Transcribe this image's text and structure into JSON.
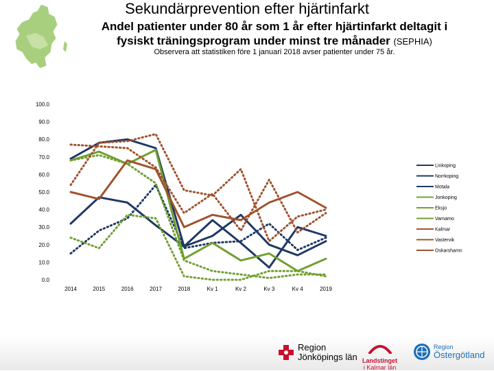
{
  "title": "Sekundärprevention efter hjärtinfarkt",
  "subtitle": "Andel patienter under 80 år som 1 år efter hjärtinfarkt deltagit i fysiskt träningsprogram under minst tre månader",
  "subtitle_tag": "(SEPHIA)",
  "note": "Observera att statistiken före 1 januari  2018 avser patienter under 75 år.",
  "logos": {
    "jonkoping_line1": "Region",
    "jonkoping_line2": "Jönköpings län",
    "kalmar_line1": "Landstinget",
    "kalmar_line2": "i Kalmar län",
    "ostergotland_line1": "Region",
    "ostergotland_line2": "Östergötland"
  },
  "colors": {
    "navy": "#1f3864",
    "green": "#70a030",
    "brown": "#a0522d",
    "background": "#ffffff"
  },
  "chart_data": {
    "type": "line",
    "title": "",
    "xlabel": "",
    "ylabel": "",
    "ylim": [
      0,
      100
    ],
    "yticks": [
      "100.0",
      "90.0",
      "80.0",
      "70.0",
      "60.0",
      "50.0",
      "40.0",
      "30.0",
      "20.0",
      "10.0",
      "0.0"
    ],
    "categories": [
      "2014",
      "2015",
      "2016",
      "2017",
      "2018",
      "Kv 1",
      "Kv 2",
      "Kv 3",
      "Kv 4",
      "2019"
    ],
    "legend_position": "right",
    "series": [
      {
        "name": "Linköping",
        "legend_label": "Linkoping",
        "color": "#1f3864",
        "dash": "solid",
        "values": [
          69,
          78,
          80,
          75,
          19,
          25,
          37,
          20,
          14,
          22
        ]
      },
      {
        "name": "Norrköping",
        "legend_label": "Norrkoping",
        "color": "#1f3864",
        "dash": "dotted",
        "values": [
          15,
          28,
          35,
          54,
          18,
          21,
          22,
          32,
          17,
          24
        ]
      },
      {
        "name": "Motala",
        "legend_label": "Motala",
        "color": "#1f3864",
        "dash": "solid",
        "values": [
          32,
          47,
          44,
          31,
          19,
          34,
          21,
          7,
          30,
          25
        ]
      },
      {
        "name": "Jönköping",
        "legend_label": "Jonkoping",
        "color": "#70a030",
        "dash": "solid",
        "values": [
          68,
          73,
          66,
          74,
          12,
          21,
          11,
          15,
          5,
          12
        ]
      },
      {
        "name": "Eksjö",
        "legend_label": "Eksjo",
        "color": "#70a030",
        "dash": "dotted",
        "values": [
          24,
          18,
          37,
          35,
          2,
          0,
          0,
          5,
          5,
          2
        ]
      },
      {
        "name": "Värnamo",
        "legend_label": "Varnamo",
        "color": "#70a030",
        "dash": "dotted",
        "values": [
          68,
          71,
          66,
          55,
          11,
          5,
          3,
          1,
          3,
          3
        ]
      },
      {
        "name": "Kalmar",
        "legend_label": "Kalmar",
        "color": "#a0522d",
        "dash": "dotted",
        "values": [
          54,
          78,
          79,
          83,
          51,
          48,
          63,
          22,
          36,
          40
        ]
      },
      {
        "name": "Västervik",
        "legend_label": "Vastervik",
        "color": "#a0522d",
        "dash": "dotted",
        "values": [
          77,
          76,
          75,
          64,
          38,
          49,
          28,
          57,
          27,
          38
        ]
      },
      {
        "name": "Oskarshamn",
        "legend_label": "Oskarshamn",
        "color": "#a0522d",
        "dash": "solid",
        "values": [
          50,
          46,
          68,
          63,
          30,
          37,
          34,
          44,
          50,
          41
        ]
      }
    ]
  }
}
